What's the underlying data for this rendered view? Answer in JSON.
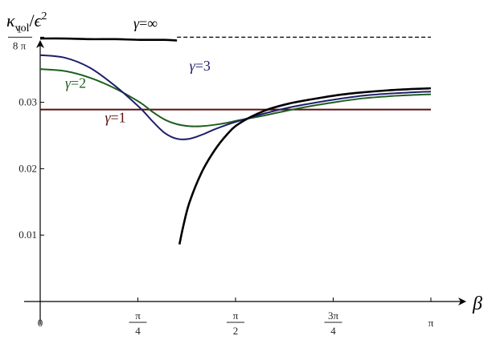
{
  "chart_data": {
    "type": "line",
    "title": "",
    "ylabel": "κ_vol/ε²",
    "xlabel": "β",
    "xlim": [
      0,
      3.1416
    ],
    "ylim": [
      0,
      0.0425
    ],
    "x_ticks": [
      {
        "value": 0,
        "label": "0"
      },
      {
        "value": 0.7854,
        "label": "π/4"
      },
      {
        "value": 1.5708,
        "label": "π/2"
      },
      {
        "value": 2.3562,
        "label": "3π/4"
      },
      {
        "value": 3.1416,
        "label": "π"
      }
    ],
    "y_ticks": [
      {
        "value": 0.01,
        "label": "0.01"
      },
      {
        "value": 0.02,
        "label": "0.02"
      },
      {
        "value": 0.03,
        "label": "0.03"
      },
      {
        "value": 0.0398,
        "label": "1/(8π)"
      }
    ],
    "reference_line": {
      "value": 0.0398,
      "style": "dashed",
      "color": "#000000"
    },
    "series": [
      {
        "name": "γ=1",
        "color": "#5a0f0f",
        "x": [
          0,
          3.1416
        ],
        "y": [
          0.0289,
          0.0289
        ]
      },
      {
        "name": "γ=2",
        "color": "#1f5f1f",
        "x": [
          0,
          0.2,
          0.4,
          0.6,
          0.8,
          0.9,
          1.0,
          1.1,
          1.2,
          1.3,
          1.4,
          1.5,
          1.6,
          1.8,
          2.0,
          2.2,
          2.4,
          2.6,
          2.8,
          3.0,
          3.1416
        ],
        "y": [
          0.035,
          0.0347,
          0.0337,
          0.0321,
          0.03,
          0.0286,
          0.0274,
          0.0267,
          0.0264,
          0.0264,
          0.0266,
          0.0269,
          0.0273,
          0.028,
          0.0288,
          0.0295,
          0.0301,
          0.0306,
          0.0309,
          0.0311,
          0.0312
        ]
      },
      {
        "name": "γ=3",
        "color": "#1f1f6b",
        "x": [
          0,
          0.2,
          0.4,
          0.6,
          0.8,
          0.9,
          1.0,
          1.1,
          1.2,
          1.3,
          1.4,
          1.5,
          1.6,
          1.8,
          2.0,
          2.2,
          2.4,
          2.6,
          2.8,
          3.0,
          3.1416
        ],
        "y": [
          0.0371,
          0.0367,
          0.0352,
          0.0325,
          0.0292,
          0.0272,
          0.0254,
          0.0245,
          0.0245,
          0.0251,
          0.0259,
          0.0266,
          0.0272,
          0.0283,
          0.0292,
          0.0299,
          0.0305,
          0.031,
          0.0313,
          0.0315,
          0.0316
        ]
      },
      {
        "name": "γ=∞",
        "color": "#000000",
        "x": [
          0,
          0.2,
          0.4,
          0.6,
          0.8,
          1.0,
          1.1,
          1.12,
          1.15,
          1.2,
          1.3,
          1.4,
          1.5,
          1.6,
          1.8,
          2.0,
          2.2,
          2.4,
          2.6,
          2.8,
          3.0,
          3.1416
        ],
        "y": [
          0.0396,
          0.0396,
          0.0395,
          0.0395,
          0.0394,
          0.0394,
          0.0393,
          0.0086,
          0.0113,
          0.0149,
          0.0195,
          0.0227,
          0.0251,
          0.0268,
          0.0287,
          0.0298,
          0.0305,
          0.0311,
          0.0315,
          0.0318,
          0.032,
          0.0321
        ],
        "segments": [
          [
            0,
            6
          ],
          [
            7,
            21
          ]
        ]
      }
    ],
    "series_labels": [
      {
        "text": "γ=∞",
        "x": 0.75,
        "y": 0.0412
      },
      {
        "text": "γ=3",
        "x": 1.2,
        "y": 0.0348
      },
      {
        "text": "γ=2",
        "x": 0.2,
        "y": 0.0322
      },
      {
        "text": "γ=1",
        "x": 0.52,
        "y": 0.027
      }
    ],
    "grid": false,
    "legend": "none"
  }
}
